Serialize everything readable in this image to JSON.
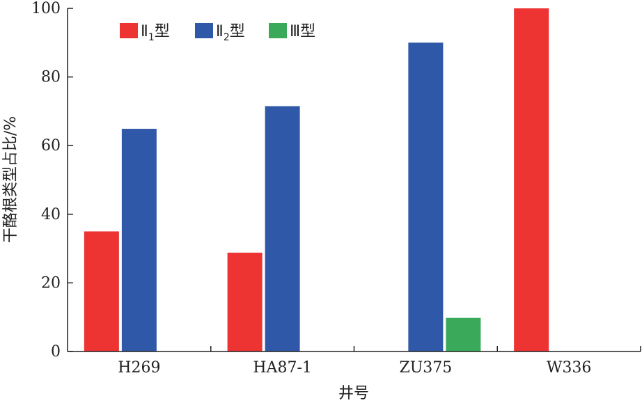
{
  "chart_data": {
    "type": "bar",
    "categories": [
      "H269",
      "HA87-1",
      "ZU375",
      "W336"
    ],
    "series": [
      {
        "name": "Ⅱ1型",
        "name_main": "Ⅱ",
        "name_sub": "1",
        "name_suffix": "型",
        "color": "#ee3333",
        "values": [
          35,
          28.8,
          0,
          100
        ]
      },
      {
        "name": "Ⅱ2型",
        "name_main": "Ⅱ",
        "name_sub": "2",
        "name_suffix": "型",
        "color": "#3058a8",
        "values": [
          64.9,
          71.5,
          90,
          0
        ]
      },
      {
        "name": "Ⅲ型",
        "name_main": "Ⅲ",
        "name_sub": "",
        "name_suffix": "型",
        "color": "#3aaa5a",
        "values": [
          0,
          0,
          9.8,
          0
        ]
      }
    ],
    "ylim": [
      0,
      100
    ],
    "yticks": [
      "0",
      "20",
      "40",
      "60",
      "80",
      "100"
    ],
    "xlabel": "井号",
    "ylabel": "干酪根类型占比/%",
    "legend_position": "top-left"
  }
}
